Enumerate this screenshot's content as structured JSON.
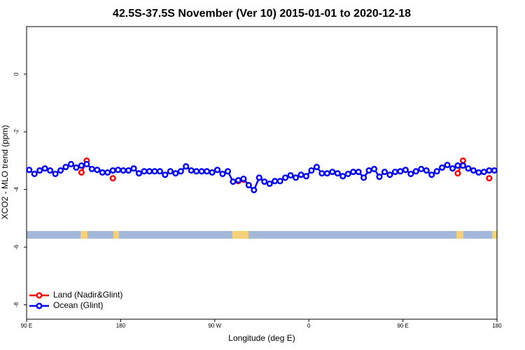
{
  "chart_data": {
    "type": "line",
    "title": "42.5S-37.5S November (Ver 10)   2015-01-01 to 2020-12-18",
    "x_label": "Longitude (deg E)",
    "y_label": "XCO2 - MLO trend (ppm)",
    "xlim": [
      90,
      540
    ],
    "xticks": [
      {
        "value": 90,
        "label": "90 E"
      },
      {
        "value": 180,
        "label": "180"
      },
      {
        "value": 270,
        "label": "90 W"
      },
      {
        "value": 360,
        "label": "0"
      },
      {
        "value": 450,
        "label": "90 E"
      },
      {
        "value": 540,
        "label": "180"
      }
    ],
    "ylim": [
      -8.5,
      1.65
    ],
    "yticks": [
      0,
      -2,
      -4,
      -6,
      -8
    ],
    "legend": "bottom-left",
    "series": [
      {
        "name": "Land (Nadir&Glint)",
        "color": "#ff0000",
        "x": [
          142.5,
          147.5,
          160,
          172.5,
          230,
          292.5,
          297.5,
          400,
          502.5,
          507.5,
          520,
          532.5
        ],
        "values": [
          -3.41,
          -3.0,
          null,
          -3.61,
          null,
          -3.71,
          -3.66,
          null,
          -3.44,
          -3.0,
          null,
          -3.61
        ]
      },
      {
        "name": "Ocean (Glint)",
        "color": "#0000ff",
        "x": [
          92.5,
          97.5,
          102.5,
          107.5,
          112.5,
          117.5,
          122.5,
          127.5,
          132.5,
          137.5,
          142.5,
          147.5,
          152.5,
          157.5,
          162.5,
          167.5,
          172.5,
          177.5,
          182.5,
          187.5,
          192.5,
          197.5,
          202.5,
          207.5,
          212.5,
          217.5,
          222.5,
          227.5,
          232.5,
          237.5,
          242.5,
          247.5,
          252.5,
          257.5,
          262.5,
          267.5,
          272.5,
          277.5,
          282.5,
          287.5,
          292.5,
          297.5,
          302.5,
          307.5,
          312.5,
          317.5,
          322.5,
          327.5,
          332.5,
          337.5,
          342.5,
          347.5,
          352.5,
          357.5,
          362.5,
          367.5,
          372.5,
          377.5,
          382.5,
          387.5,
          392.5,
          397.5,
          402.5,
          407.5,
          412.5,
          417.5,
          422.5,
          427.5,
          432.5,
          437.5,
          442.5,
          447.5,
          452.5,
          457.5,
          462.5,
          467.5,
          472.5,
          477.5,
          482.5,
          487.5,
          492.5,
          497.5,
          502.5,
          507.5,
          512.5,
          517.5,
          522.5,
          527.5,
          532.5,
          537.5
        ],
        "values": [
          -3.32,
          -3.46,
          -3.34,
          -3.27,
          -3.34,
          -3.46,
          -3.34,
          -3.22,
          -3.12,
          -3.24,
          -3.17,
          -3.12,
          -3.29,
          -3.32,
          -3.41,
          -3.41,
          -3.34,
          -3.32,
          -3.34,
          -3.34,
          -3.27,
          -3.44,
          -3.37,
          -3.37,
          -3.37,
          -3.37,
          -3.49,
          -3.37,
          -3.44,
          -3.37,
          -3.2,
          -3.34,
          -3.37,
          -3.37,
          -3.37,
          -3.41,
          -3.32,
          -3.46,
          -3.37,
          -3.73,
          -3.68,
          -3.63,
          -3.85,
          -4.02,
          -3.59,
          -3.73,
          -3.8,
          -3.71,
          -3.71,
          -3.59,
          -3.51,
          -3.59,
          -3.49,
          -3.54,
          -3.34,
          -3.22,
          -3.44,
          -3.44,
          -3.39,
          -3.44,
          -3.54,
          -3.46,
          -3.39,
          -3.39,
          -3.59,
          -3.34,
          -3.29,
          -3.56,
          -3.39,
          -3.49,
          -3.39,
          -3.37,
          -3.32,
          -3.46,
          -3.37,
          -3.29,
          -3.34,
          -3.49,
          -3.37,
          -3.24,
          -3.15,
          -3.27,
          -3.17,
          -3.17,
          -3.27,
          -3.34,
          -3.41,
          -3.39,
          -3.34,
          -3.34
        ]
      }
    ]
  }
}
